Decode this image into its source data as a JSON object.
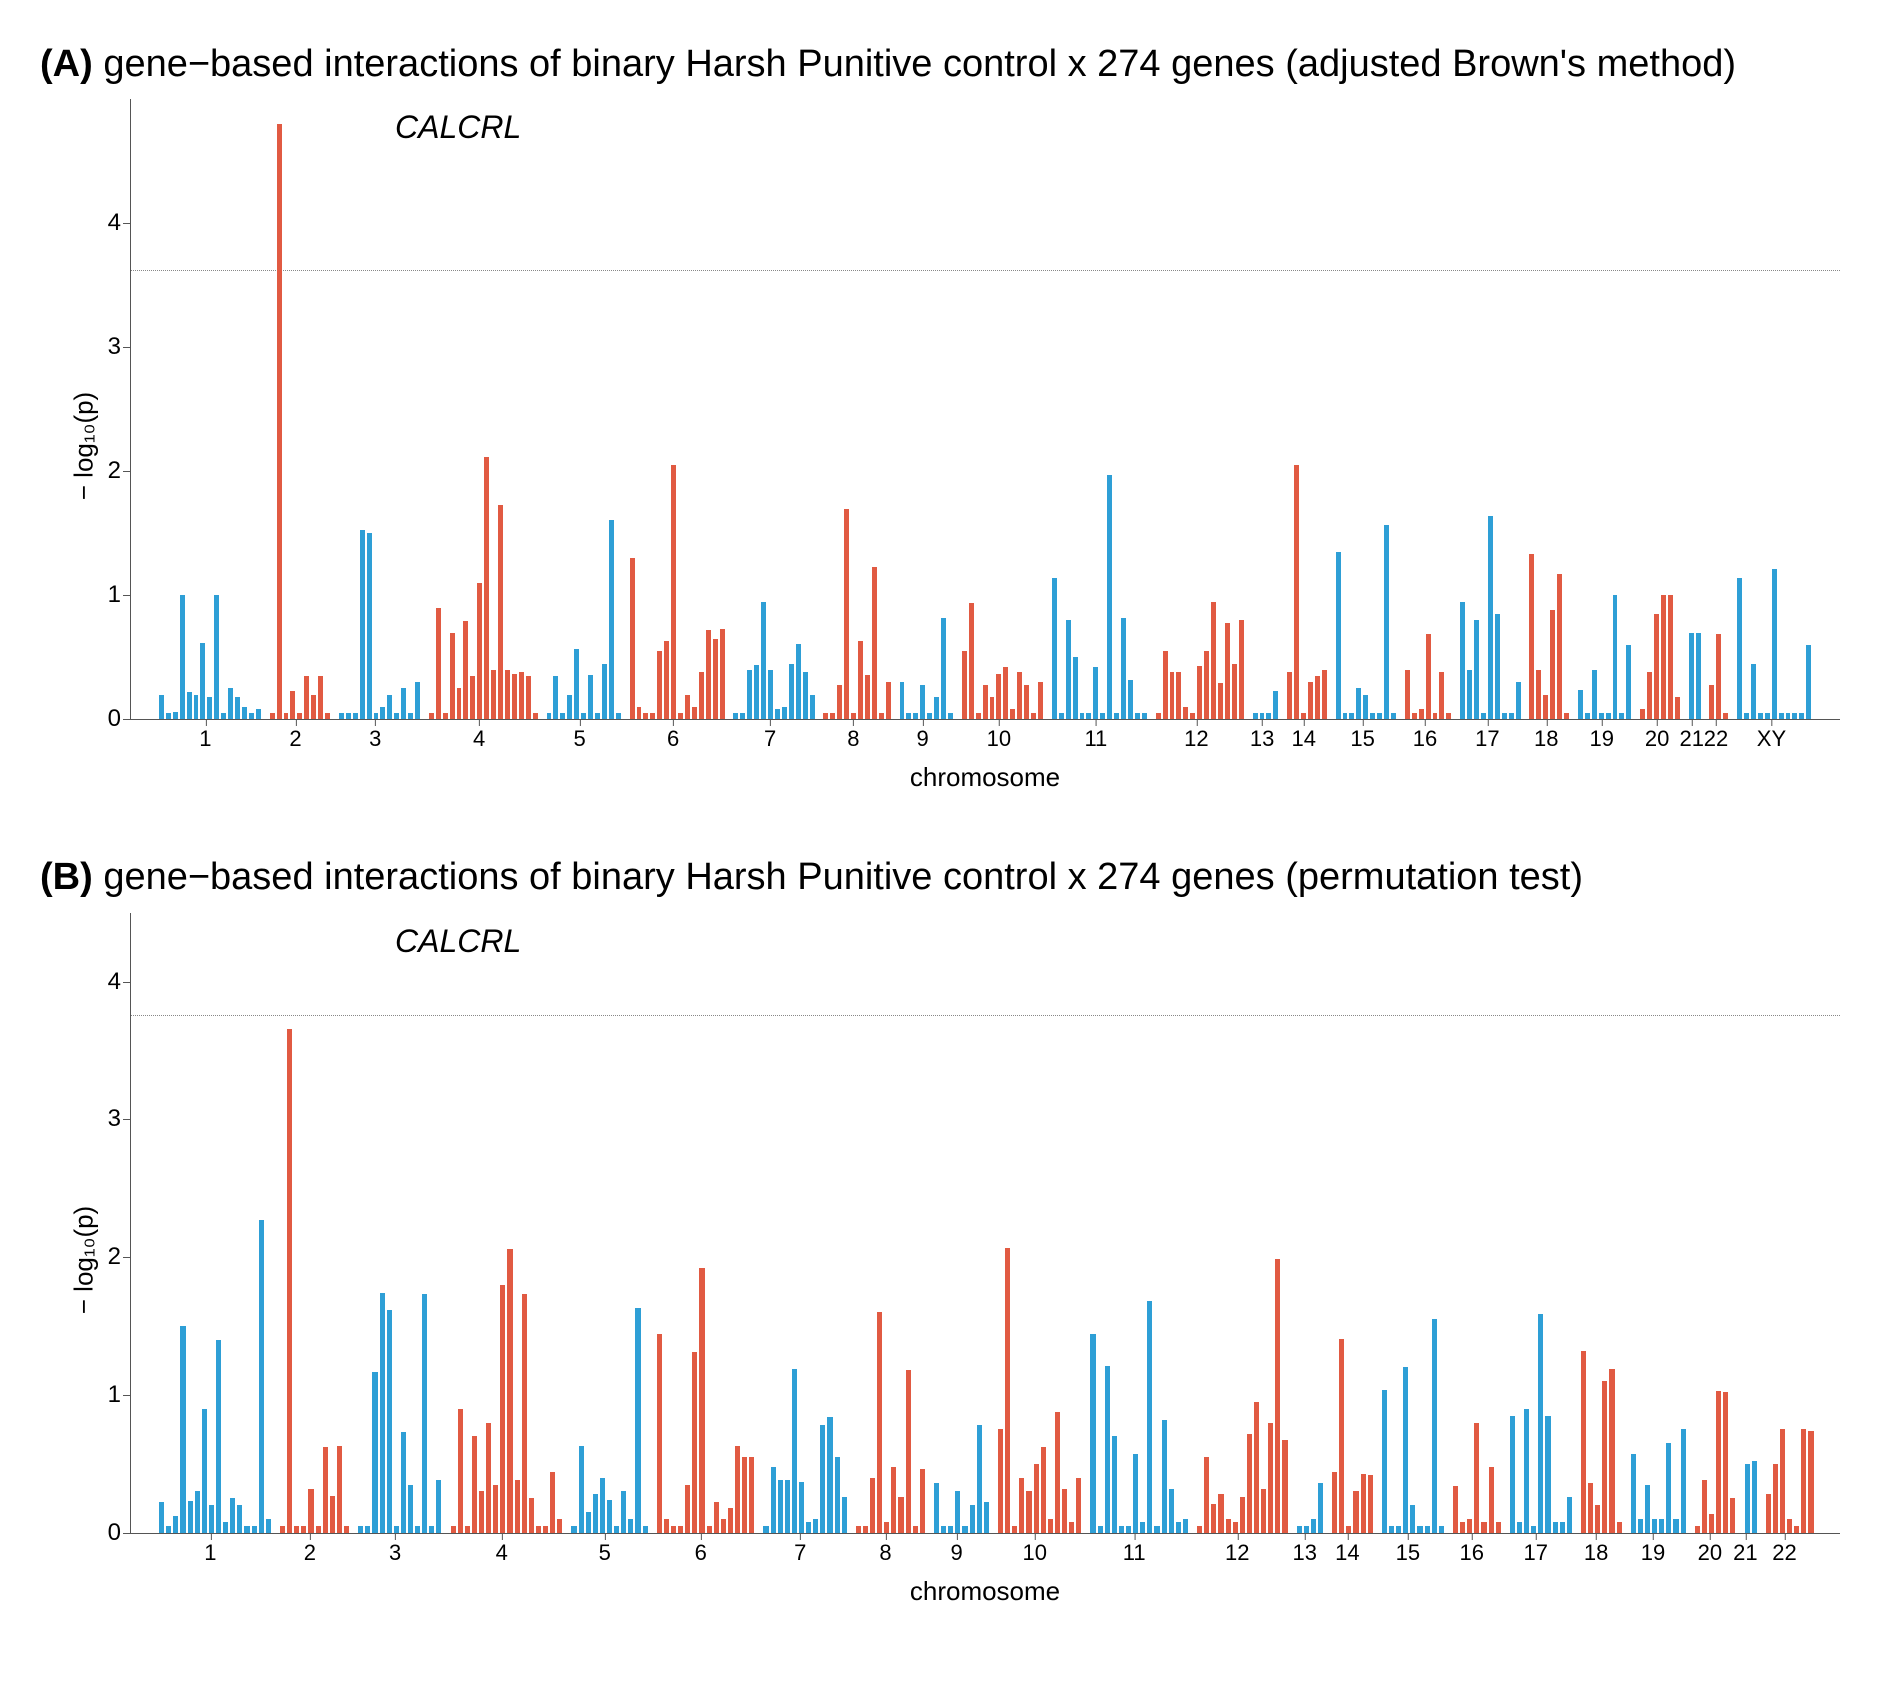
{
  "colors": {
    "blue": "#2e9fd6",
    "red": "#e15a42",
    "axis": "#555555",
    "threshold": "#888888",
    "background": "#ffffff"
  },
  "ylabel": "− log₁₀(p)",
  "xlabel": "chromosome",
  "panels": [
    {
      "letter": "(A)",
      "title": "gene−based interactions of binary Harsh Punitive control x 274 genes (adjusted Brown's method)",
      "gene_label": "CALCRL",
      "gene_label_pos_pct": 15.5,
      "ymax": 5,
      "yticks": [
        0,
        1,
        2,
        3,
        4
      ],
      "threshold": 3.62,
      "chromosomes": [
        {
          "label": "1",
          "color": "blue",
          "values": [
            0.2,
            0.05,
            0.06,
            1.0,
            0.22,
            0.2,
            0.62,
            0.18,
            1.0,
            0.05,
            0.25,
            0.18,
            0.1,
            0.05,
            0.08
          ]
        },
        {
          "label": "2",
          "color": "red",
          "values": [
            0.05,
            4.8,
            0.05,
            0.23,
            0.05,
            0.35,
            0.2,
            0.35,
            0.05
          ]
        },
        {
          "label": "3",
          "color": "blue",
          "values": [
            0.05,
            0.05,
            0.05,
            1.53,
            1.5,
            0.05,
            0.1,
            0.2,
            0.05,
            0.25,
            0.05,
            0.3
          ]
        },
        {
          "label": "4",
          "color": "red",
          "values": [
            0.05,
            0.9,
            0.05,
            0.7,
            0.25,
            0.79,
            0.35,
            1.1,
            2.12,
            0.4,
            1.73,
            0.4,
            0.37,
            0.38,
            0.35,
            0.05
          ]
        },
        {
          "label": "5",
          "color": "blue",
          "values": [
            0.05,
            0.35,
            0.05,
            0.2,
            0.57,
            0.05,
            0.36,
            0.05,
            0.45,
            1.61,
            0.05
          ]
        },
        {
          "label": "6",
          "color": "red",
          "values": [
            1.3,
            0.1,
            0.05,
            0.05,
            0.55,
            0.63,
            2.05,
            0.05,
            0.2,
            0.1,
            0.38,
            0.72,
            0.65,
            0.73
          ]
        },
        {
          "label": "7",
          "color": "blue",
          "values": [
            0.05,
            0.05,
            0.4,
            0.44,
            0.95,
            0.4,
            0.08,
            0.1,
            0.45,
            0.61,
            0.38,
            0.2
          ]
        },
        {
          "label": "8",
          "color": "red",
          "values": [
            0.05,
            0.05,
            0.28,
            1.7,
            0.05,
            0.63,
            0.36,
            1.23,
            0.05,
            0.3
          ]
        },
        {
          "label": "9",
          "color": "blue",
          "values": [
            0.3,
            0.05,
            0.05,
            0.28,
            0.05,
            0.18,
            0.82,
            0.05
          ]
        },
        {
          "label": "10",
          "color": "red",
          "values": [
            0.55,
            0.94,
            0.05,
            0.28,
            0.18,
            0.37,
            0.42,
            0.08,
            0.38,
            0.28,
            0.05,
            0.3
          ]
        },
        {
          "label": "11",
          "color": "blue",
          "values": [
            1.14,
            0.05,
            0.8,
            0.5,
            0.05,
            0.05,
            0.42,
            0.05,
            1.97,
            0.05,
            0.82,
            0.32,
            0.05,
            0.05
          ]
        },
        {
          "label": "12",
          "color": "red",
          "values": [
            0.05,
            0.55,
            0.38,
            0.38,
            0.1,
            0.05,
            0.43,
            0.55,
            0.95,
            0.29,
            0.78,
            0.45,
            0.8
          ]
        },
        {
          "label": "13",
          "color": "blue",
          "values": [
            0.05,
            0.05,
            0.05,
            0.23
          ]
        },
        {
          "label": "14",
          "color": "red",
          "values": [
            0.38,
            2.05,
            0.05,
            0.3,
            0.35,
            0.4
          ]
        },
        {
          "label": "15",
          "color": "blue",
          "values": [
            1.35,
            0.05,
            0.05,
            0.25,
            0.2,
            0.05,
            0.05,
            1.57,
            0.05
          ]
        },
        {
          "label": "16",
          "color": "red",
          "values": [
            0.4,
            0.05,
            0.08,
            0.69,
            0.05,
            0.38,
            0.05
          ]
        },
        {
          "label": "17",
          "color": "blue",
          "values": [
            0.95,
            0.4,
            0.8,
            0.05,
            1.64,
            0.85,
            0.05,
            0.05,
            0.3
          ]
        },
        {
          "label": "18",
          "color": "red",
          "values": [
            1.33,
            0.4,
            0.2,
            0.88,
            1.17,
            0.05
          ]
        },
        {
          "label": "19",
          "color": "blue",
          "values": [
            0.24,
            0.05,
            0.4,
            0.05,
            0.05,
            1.0,
            0.05,
            0.6
          ]
        },
        {
          "label": "20",
          "color": "red",
          "values": [
            0.08,
            0.38,
            0.85,
            1.0,
            1.0,
            0.18
          ]
        },
        {
          "label": "21",
          "color": "blue",
          "values": [
            0.7,
            0.7
          ]
        },
        {
          "label": "22",
          "color": "red",
          "values": [
            0.28,
            0.69,
            0.05
          ]
        },
        {
          "label": "XY",
          "color": "blue",
          "values": [
            1.14,
            0.05,
            0.45,
            0.05,
            0.05,
            1.21,
            0.05,
            0.05,
            0.05,
            0.05,
            0.6
          ]
        }
      ]
    },
    {
      "letter": "(B)",
      "title": "gene−based interactions of binary Harsh Punitive control x 274 genes (permutation test)",
      "gene_label": "CALCRL",
      "gene_label_pos_pct": 15.5,
      "ymax": 4.5,
      "yticks": [
        0,
        1,
        2,
        3,
        4
      ],
      "threshold": 3.75,
      "chromosomes": [
        {
          "label": "1",
          "color": "blue",
          "values": [
            0.22,
            0.05,
            0.12,
            1.5,
            0.23,
            0.3,
            0.9,
            0.2,
            1.4,
            0.08,
            0.25,
            0.2,
            0.05,
            0.05,
            2.27,
            0.1
          ]
        },
        {
          "label": "2",
          "color": "red",
          "values": [
            0.05,
            3.66,
            0.05,
            0.05,
            0.32,
            0.05,
            0.62,
            0.27,
            0.63,
            0.05
          ]
        },
        {
          "label": "3",
          "color": "blue",
          "values": [
            0.05,
            0.05,
            1.17,
            1.74,
            1.62,
            0.05,
            0.73,
            0.35,
            0.05,
            1.73,
            0.05,
            0.38
          ]
        },
        {
          "label": "4",
          "color": "red",
          "values": [
            0.05,
            0.9,
            0.05,
            0.7,
            0.3,
            0.8,
            0.35,
            1.8,
            2.06,
            0.38,
            1.73,
            0.25,
            0.05,
            0.05,
            0.44,
            0.1
          ]
        },
        {
          "label": "5",
          "color": "blue",
          "values": [
            0.05,
            0.63,
            0.15,
            0.28,
            0.4,
            0.24,
            0.05,
            0.3,
            0.1,
            1.63,
            0.05
          ]
        },
        {
          "label": "6",
          "color": "red",
          "values": [
            1.44,
            0.1,
            0.05,
            0.05,
            0.35,
            1.31,
            1.92,
            0.05,
            0.22,
            0.1,
            0.18,
            0.63,
            0.55,
            0.55
          ]
        },
        {
          "label": "7",
          "color": "blue",
          "values": [
            0.05,
            0.48,
            0.38,
            0.38,
            1.19,
            0.37,
            0.08,
            0.1,
            0.78,
            0.84,
            0.55,
            0.26
          ]
        },
        {
          "label": "8",
          "color": "red",
          "values": [
            0.05,
            0.05,
            0.4,
            1.6,
            0.08,
            0.48,
            0.26,
            1.18,
            0.05,
            0.46
          ]
        },
        {
          "label": "9",
          "color": "blue",
          "values": [
            0.36,
            0.05,
            0.05,
            0.3,
            0.05,
            0.2,
            0.78,
            0.22
          ]
        },
        {
          "label": "10",
          "color": "red",
          "values": [
            0.75,
            2.07,
            0.05,
            0.4,
            0.3,
            0.5,
            0.62,
            0.1,
            0.88,
            0.32,
            0.08,
            0.4
          ]
        },
        {
          "label": "11",
          "color": "blue",
          "values": [
            1.44,
            0.05,
            1.21,
            0.7,
            0.05,
            0.05,
            0.57,
            0.08,
            1.68,
            0.05,
            0.82,
            0.32,
            0.08,
            0.1
          ]
        },
        {
          "label": "12",
          "color": "red",
          "values": [
            0.05,
            0.55,
            0.21,
            0.28,
            0.1,
            0.08,
            0.26,
            0.72,
            0.95,
            0.32,
            0.8,
            1.99,
            0.67
          ]
        },
        {
          "label": "13",
          "color": "blue",
          "values": [
            0.05,
            0.05,
            0.1,
            0.36
          ]
        },
        {
          "label": "14",
          "color": "red",
          "values": [
            0.44,
            1.41,
            0.05,
            0.3,
            0.43,
            0.42
          ]
        },
        {
          "label": "15",
          "color": "blue",
          "values": [
            1.04,
            0.05,
            0.05,
            1.2,
            0.2,
            0.05,
            0.05,
            1.55,
            0.05
          ]
        },
        {
          "label": "16",
          "color": "red",
          "values": [
            0.34,
            0.08,
            0.1,
            0.8,
            0.08,
            0.48,
            0.08
          ]
        },
        {
          "label": "17",
          "color": "blue",
          "values": [
            0.85,
            0.08,
            0.9,
            0.05,
            1.59,
            0.85,
            0.08,
            0.08,
            0.26
          ]
        },
        {
          "label": "18",
          "color": "red",
          "values": [
            1.32,
            0.36,
            0.2,
            1.1,
            1.19,
            0.08
          ]
        },
        {
          "label": "19",
          "color": "blue",
          "values": [
            0.57,
            0.1,
            0.35,
            0.1,
            0.1,
            0.65,
            0.1,
            0.75
          ]
        },
        {
          "label": "20",
          "color": "red",
          "values": [
            0.05,
            0.38,
            0.14,
            1.03,
            1.02,
            0.25
          ]
        },
        {
          "label": "21",
          "color": "blue",
          "values": [
            0.5,
            0.52
          ]
        },
        {
          "label": "22",
          "color": "red",
          "values": [
            0.28,
            0.5,
            0.75,
            0.1,
            0.05,
            0.75,
            0.74
          ]
        }
      ]
    }
  ]
}
